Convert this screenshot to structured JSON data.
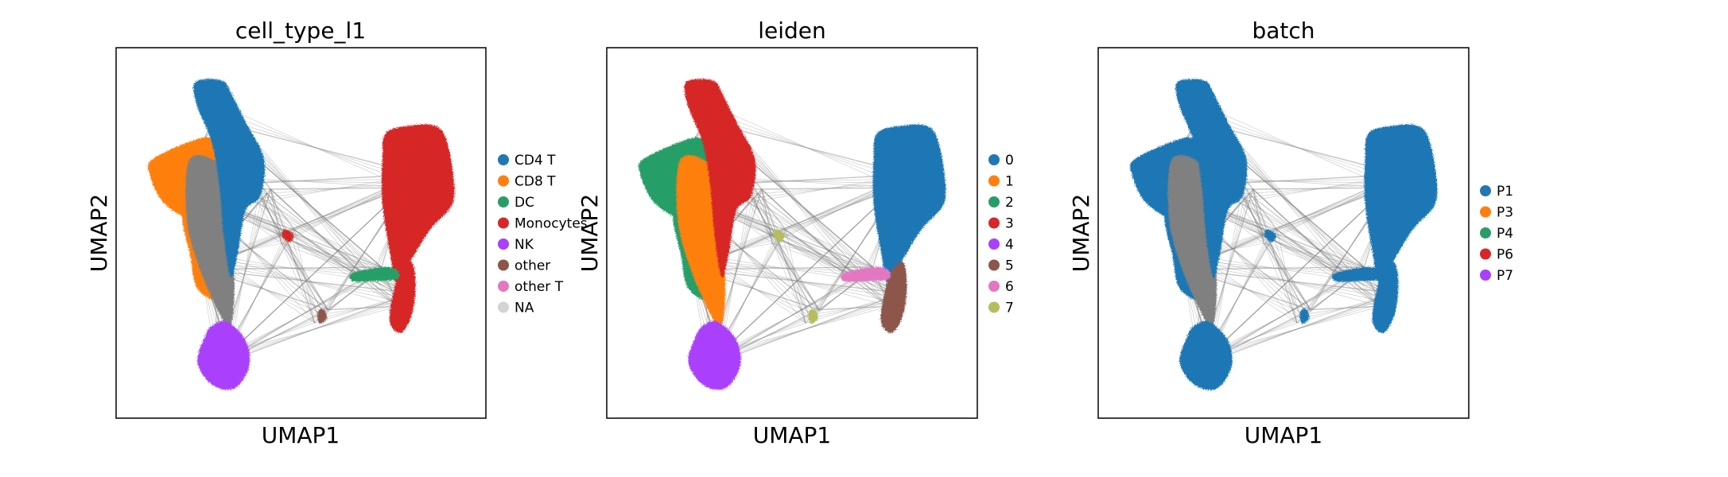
{
  "chart_data": [
    {
      "type": "scatter",
      "title": "cell_type_l1",
      "xlabel": "UMAP1",
      "ylabel": "UMAP2",
      "grid": false,
      "ticks": false,
      "legend_position": "right",
      "legend": [
        {
          "label": "CD4 T",
          "color": "#1f77b4"
        },
        {
          "label": "CD8 T",
          "color": "#ff7f0e"
        },
        {
          "label": "DC",
          "color": "#279e68"
        },
        {
          "label": "Monocytes",
          "color": "#d62728"
        },
        {
          "label": "NK",
          "color": "#aa40fc"
        },
        {
          "label": "other",
          "color": "#8c564b"
        },
        {
          "label": "other T",
          "color": "#e377c2"
        },
        {
          "label": "NA",
          "color": "#d3d3d3"
        }
      ]
    },
    {
      "type": "scatter",
      "title": "leiden",
      "xlabel": "UMAP1",
      "ylabel": "UMAP2",
      "grid": false,
      "ticks": false,
      "legend_position": "right",
      "legend": [
        {
          "label": "0",
          "color": "#1f77b4"
        },
        {
          "label": "1",
          "color": "#ff7f0e"
        },
        {
          "label": "2",
          "color": "#279e68"
        },
        {
          "label": "3",
          "color": "#d62728"
        },
        {
          "label": "4",
          "color": "#aa40fc"
        },
        {
          "label": "5",
          "color": "#8c564b"
        },
        {
          "label": "6",
          "color": "#e377c2"
        },
        {
          "label": "7",
          "color": "#b5bd61"
        }
      ]
    },
    {
      "type": "scatter",
      "title": "batch",
      "xlabel": "UMAP1",
      "ylabel": "UMAP2",
      "grid": false,
      "ticks": false,
      "legend_position": "right",
      "legend": [
        {
          "label": "P1",
          "color": "#1f77b4"
        },
        {
          "label": "P3",
          "color": "#ff7f0e"
        },
        {
          "label": "P4",
          "color": "#279e68"
        },
        {
          "label": "P6",
          "color": "#d62728"
        },
        {
          "label": "P7",
          "color": "#aa40fc"
        }
      ]
    }
  ],
  "colors": {
    "paga_edges": "#808080",
    "axes_frame": "#000000"
  }
}
